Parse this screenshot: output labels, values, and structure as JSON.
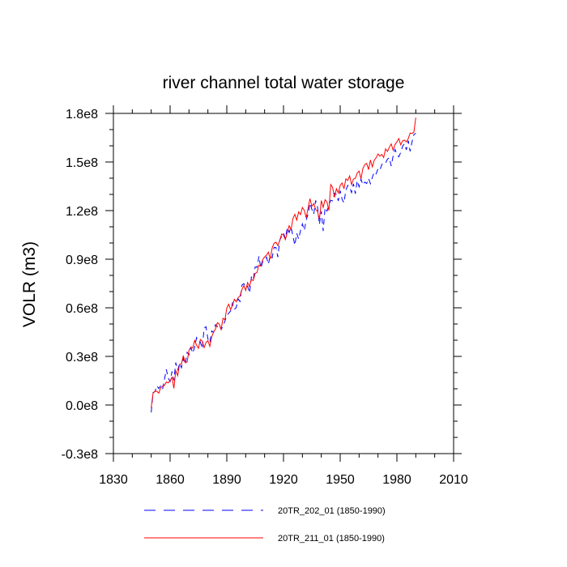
{
  "chart_data": {
    "type": "line",
    "title": "river channel total water storage",
    "xlabel": "",
    "ylabel": "VOLR  (m3)",
    "xlim": [
      1830,
      2010
    ],
    "ylim": [
      -30000000,
      180000000
    ],
    "x_ticks": [
      1830,
      1860,
      1890,
      1920,
      1950,
      1980,
      2010
    ],
    "x_tick_labels": [
      "1830",
      "1860",
      "1890",
      "1920",
      "1950",
      "1980",
      "2010"
    ],
    "y_ticks": [
      -30000000,
      0,
      30000000,
      60000000,
      90000000,
      120000000,
      150000000,
      180000000
    ],
    "y_tick_labels": [
      "-0.3e8",
      "0.0e8",
      "0.3e8",
      "0.6e8",
      "0.9e8",
      "1.2e8",
      "1.5e8",
      "1.8e8"
    ],
    "series": [
      {
        "name": "20TR_202_01 (1850-1990)",
        "color": "#0000ff",
        "dash": "dashed",
        "x_start": 1850,
        "x_step": 1,
        "values": [
          -4600000.0,
          7700000.0,
          8300000.0,
          11900000.0,
          10200000.0,
          11800000.0,
          9700000.0,
          15700000.0,
          22000000.0,
          16600000.0,
          14500000.0,
          20700000.0,
          15200000.0,
          26200000.0,
          21400000.0,
          25700000.0,
          23000000.0,
          28700000.0,
          25100000.0,
          32500000.0,
          31000000.0,
          35400000.0,
          32000000.0,
          35800000.0,
          41600000.0,
          38900000.0,
          39000000.0,
          34800000.0,
          47300000.0,
          48300000.0,
          40800000.0,
          38400000.0,
          45700000.0,
          44800000.0,
          49600000.0,
          48300000.0,
          49500000.0,
          46600000.0,
          48600000.0,
          51800000.0,
          55200000.0,
          56600000.0,
          58000000.0,
          62900000.0,
          59000000.0,
          60200000.0,
          65400000.0,
          63900000.0,
          74000000.0,
          74900000.0,
          72500000.0,
          73400000.0,
          69100000.0,
          79000000.0,
          77200000.0,
          85200000.0,
          85000000.0,
          91800000.0,
          84400000.0,
          88500000.0,
          89500000.0,
          91300000.0,
          86900000.0,
          92300000.0,
          90900000.0,
          97300000.0,
          97200000.0,
          91300000.0,
          101700000.0,
          104100000.0,
          106100000.0,
          102700000.0,
          109500000.0,
          106500000.0,
          109800000.0,
          104200000.0,
          98600000.0,
          106000000.0,
          102500000.0,
          107600000.0,
          111800000.0,
          107800000.0,
          114100000.0,
          117900000.0,
          124600000.0,
          120800000.0,
          117800000.0,
          126300000.0,
          122200000.0,
          111400000.0,
          119600000.0,
          107400000.0,
          121800000.0,
          119700000.0,
          123300000.0,
          126400000.0,
          126000000.0,
          130700000.0,
          129900000.0,
          126000000.0,
          132300000.0,
          127000000.0,
          124800000.0,
          132600000.0,
          135600000.0,
          134400000.0,
          131100000.0,
          136600000.0,
          130400000.0,
          138500000.0,
          134700000.0,
          139400000.0,
          135900000.0,
          137600000.0,
          136700000.0,
          139800000.0,
          136600000.0,
          140500000.0,
          143900000.0,
          142700000.0,
          145800000.0,
          144900000.0,
          148400000.0,
          149500000.0,
          149300000.0,
          151800000.0,
          152600000.0,
          147500000.0,
          153700000.0,
          157800000.0,
          154800000.0,
          153200000.0,
          155800000.0,
          159700000.0,
          161300000.0,
          157500000.0,
          163200000.0,
          156600000.0,
          162400000.0,
          166900000.0,
          167800000.0
        ]
      },
      {
        "name": "20TR_211_01 (1850-1990)",
        "color": "#ff0000",
        "dash": "solid",
        "x_start": 1850,
        "x_step": 1,
        "values": [
          -1600000.0,
          7400000.0,
          8400000.0,
          8500000.0,
          7300000.0,
          10600000.0,
          11600000.0,
          12000000.0,
          14200000.0,
          13600000.0,
          15100000.0,
          17100000.0,
          10300000.0,
          21300000.0,
          18100000.0,
          25100000.0,
          25300000.0,
          30500000.0,
          26200000.0,
          26500000.0,
          33800000.0,
          35800000.0,
          35200000.0,
          39800000.0,
          36900000.0,
          35000000.0,
          40400000.0,
          39400000.0,
          35400000.0,
          38600000.0,
          39700000.0,
          36200000.0,
          42000000.0,
          45100000.0,
          46900000.0,
          50800000.0,
          50000000.0,
          46700000.0,
          53500000.0,
          52600000.0,
          59800000.0,
          62200000.0,
          58900000.0,
          61500000.0,
          65200000.0,
          63700000.0,
          66300000.0,
          67300000.0,
          71200000.0,
          73700000.0,
          70700000.0,
          75600000.0,
          73200000.0,
          77500000.0,
          76800000.0,
          81200000.0,
          81900000.0,
          86300000.0,
          85800000.0,
          89700000.0,
          91400000.0,
          92500000.0,
          94400000.0,
          90100000.0,
          97000000.0,
          99800000.0,
          100500000.0,
          98400000.0,
          101500000.0,
          105600000.0,
          104800000.0,
          102100000.0,
          106500000.0,
          110700000.0,
          108300000.0,
          115100000.0,
          117700000.0,
          114100000.0,
          119200000.0,
          117500000.0,
          121900000.0,
          120200000.0,
          115600000.0,
          121400000.0,
          127400000.0,
          122700000.0,
          124300000.0,
          120800000.0,
          119500000.0,
          114500000.0,
          126200000.0,
          122000000.0,
          126700000.0,
          125300000.0,
          120100000.0,
          136100000.0,
          134200000.0,
          128200000.0,
          133500000.0,
          130900000.0,
          135500000.0,
          137100000.0,
          133500000.0,
          139600000.0,
          138600000.0,
          141400000.0,
          136100000.0,
          139400000.0,
          139900000.0,
          143200000.0,
          144400000.0,
          139600000.0,
          145900000.0,
          148400000.0,
          149100000.0,
          145300000.0,
          151200000.0,
          147000000.0,
          151000000.0,
          152600000.0,
          155000000.0,
          153600000.0,
          154700000.0,
          152800000.0,
          158100000.0,
          156500000.0,
          159100000.0,
          161200000.0,
          157300000.0,
          160800000.0,
          162400000.0,
          164500000.0,
          160600000.0,
          163000000.0,
          163500000.0,
          162400000.0,
          164400000.0,
          167900000.0,
          167600000.0,
          168500000.0,
          177400000.0
        ]
      }
    ],
    "legend_position": "bottom"
  }
}
